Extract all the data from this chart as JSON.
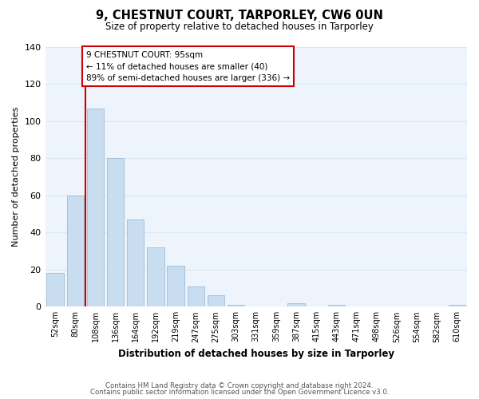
{
  "title": "9, CHESTNUT COURT, TARPORLEY, CW6 0UN",
  "subtitle": "Size of property relative to detached houses in Tarporley",
  "xlabel": "Distribution of detached houses by size in Tarporley",
  "ylabel": "Number of detached properties",
  "bar_labels": [
    "52sqm",
    "80sqm",
    "108sqm",
    "136sqm",
    "164sqm",
    "192sqm",
    "219sqm",
    "247sqm",
    "275sqm",
    "303sqm",
    "331sqm",
    "359sqm",
    "387sqm",
    "415sqm",
    "443sqm",
    "471sqm",
    "498sqm",
    "526sqm",
    "554sqm",
    "582sqm",
    "610sqm"
  ],
  "bar_heights": [
    18,
    60,
    107,
    80,
    47,
    32,
    22,
    11,
    6,
    1,
    0,
    0,
    2,
    0,
    1,
    0,
    0,
    0,
    0,
    0,
    1
  ],
  "bar_color": "#c8ddf0",
  "bar_edge_color": "#9bbcd8",
  "vline_x_idx": 1.5,
  "vline_color": "#cc0000",
  "ylim": [
    0,
    140
  ],
  "yticks": [
    0,
    20,
    40,
    60,
    80,
    100,
    120,
    140
  ],
  "annotation_title": "9 CHESTNUT COURT: 95sqm",
  "annotation_line1": "← 11% of detached houses are smaller (40)",
  "annotation_line2": "89% of semi-detached houses are larger (336) →",
  "annotation_box_color": "#ffffff",
  "annotation_box_edge": "#cc0000",
  "footer1": "Contains HM Land Registry data © Crown copyright and database right 2024.",
  "footer2": "Contains public sector information licensed under the Open Government Licence v3.0.",
  "background_color": "#ffffff",
  "grid_color": "#d8e8f4",
  "plot_bg_color": "#eef4fb"
}
